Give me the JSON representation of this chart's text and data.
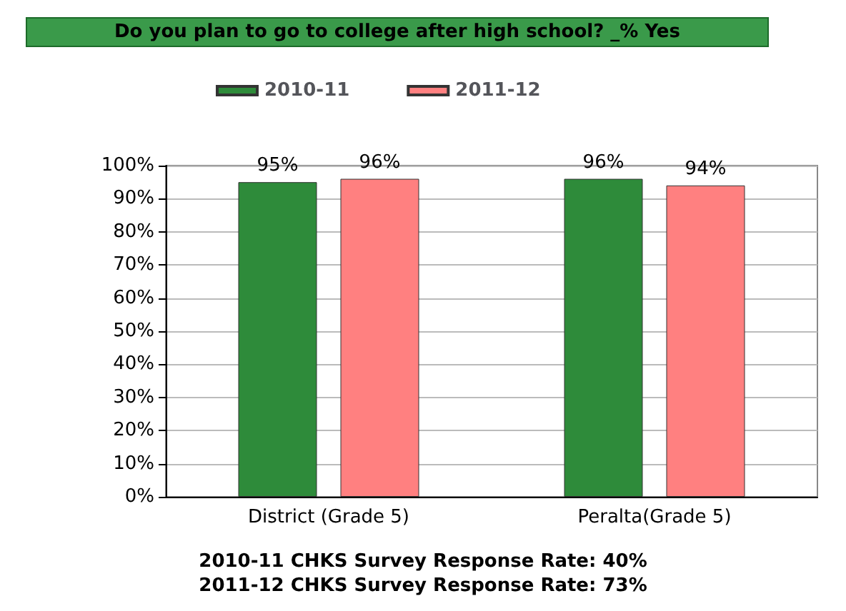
{
  "chart_data": {
    "type": "bar",
    "title": "Do you plan to go to college after high school? _% Yes",
    "categories": [
      "District (Grade 5)",
      "Peralta(Grade 5)"
    ],
    "series": [
      {
        "name": "2010-11",
        "color": "#2e8b3a",
        "values": [
          95,
          96
        ],
        "value_labels": [
          "95%",
          "96%"
        ]
      },
      {
        "name": "2011-12",
        "color": "#ff8080",
        "values": [
          96,
          94
        ],
        "value_labels": [
          "96%",
          "94%"
        ]
      }
    ],
    "ylim": [
      0,
      100
    ],
    "yticks": [
      {
        "value": 0,
        "label": "0%"
      },
      {
        "value": 10,
        "label": "10%"
      },
      {
        "value": 20,
        "label": "20%"
      },
      {
        "value": 30,
        "label": "30%"
      },
      {
        "value": 40,
        "label": "40%"
      },
      {
        "value": 50,
        "label": "50%"
      },
      {
        "value": 60,
        "label": "60%"
      },
      {
        "value": 70,
        "label": "70%"
      },
      {
        "value": 80,
        "label": "80%"
      },
      {
        "value": 90,
        "label": "90%"
      },
      {
        "value": 100,
        "label": "100%"
      }
    ],
    "grid": "y",
    "legend": "top left",
    "annotations": [
      "2010-11 CHKS Survey Response Rate: 40%",
      "2011-12 CHKS Survey Response Rate: 73%"
    ]
  }
}
